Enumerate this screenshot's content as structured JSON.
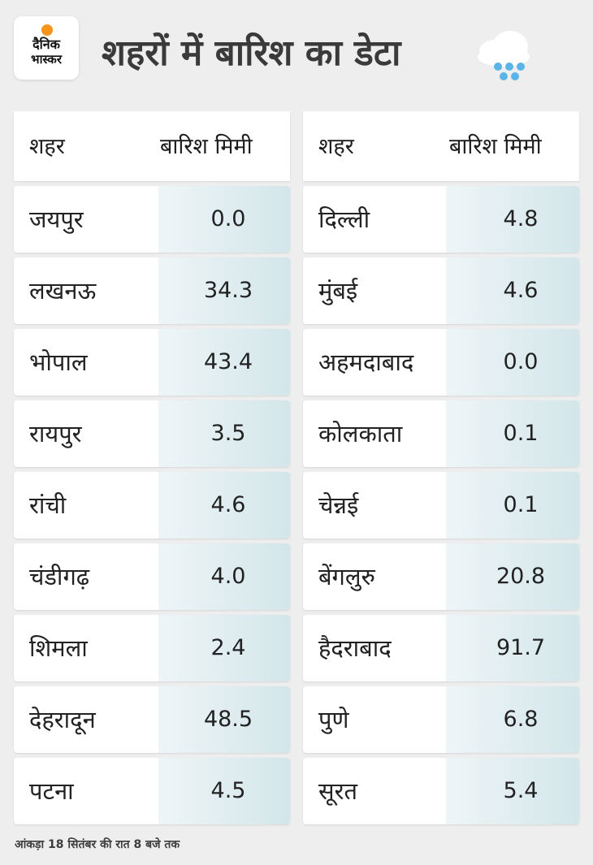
{
  "brand": {
    "logo_line1": "दैनिक",
    "logo_line2": "भास्कर"
  },
  "title": "शहरों में बारिश का डेटा",
  "columns": {
    "city": "शहर",
    "rain": "बारिश मिमी"
  },
  "left_table": [
    {
      "city": "जयपुर",
      "rain": "0.0"
    },
    {
      "city": "लखनऊ",
      "rain": "34.3"
    },
    {
      "city": "भोपाल",
      "rain": "43.4"
    },
    {
      "city": "रायपुर",
      "rain": "3.5"
    },
    {
      "city": "रांची",
      "rain": "4.6"
    },
    {
      "city": "चंडीगढ़",
      "rain": "4.0"
    },
    {
      "city": "शिमला",
      "rain": "2.4"
    },
    {
      "city": "देहरादून",
      "rain": "48.5"
    },
    {
      "city": "पटना",
      "rain": "4.5"
    }
  ],
  "right_table": [
    {
      "city": "दिल्ली",
      "rain": "4.8"
    },
    {
      "city": "मुंबई",
      "rain": "4.6"
    },
    {
      "city": "अहमदाबाद",
      "rain": "0.0"
    },
    {
      "city": "कोलकाता",
      "rain": "0.1"
    },
    {
      "city": "चेन्नई",
      "rain": "0.1"
    },
    {
      "city": "बेंगलुरु",
      "rain": "20.8"
    },
    {
      "city": "हैदराबाद",
      "rain": "91.7"
    },
    {
      "city": "पुणे",
      "rain": "6.8"
    },
    {
      "city": "सूरत",
      "rain": "5.4"
    }
  ],
  "footnote": "आंकड़ा 18 सितंबर की रात 8 बजे तक",
  "colors": {
    "background": "#eeeeee",
    "sun": "#f7941d",
    "value_cell": "#d3e6ea",
    "rain_drop": "#5ab4e8"
  },
  "icons": {
    "brand": "sun-logo-icon",
    "weather": "rain-cloud-icon"
  }
}
